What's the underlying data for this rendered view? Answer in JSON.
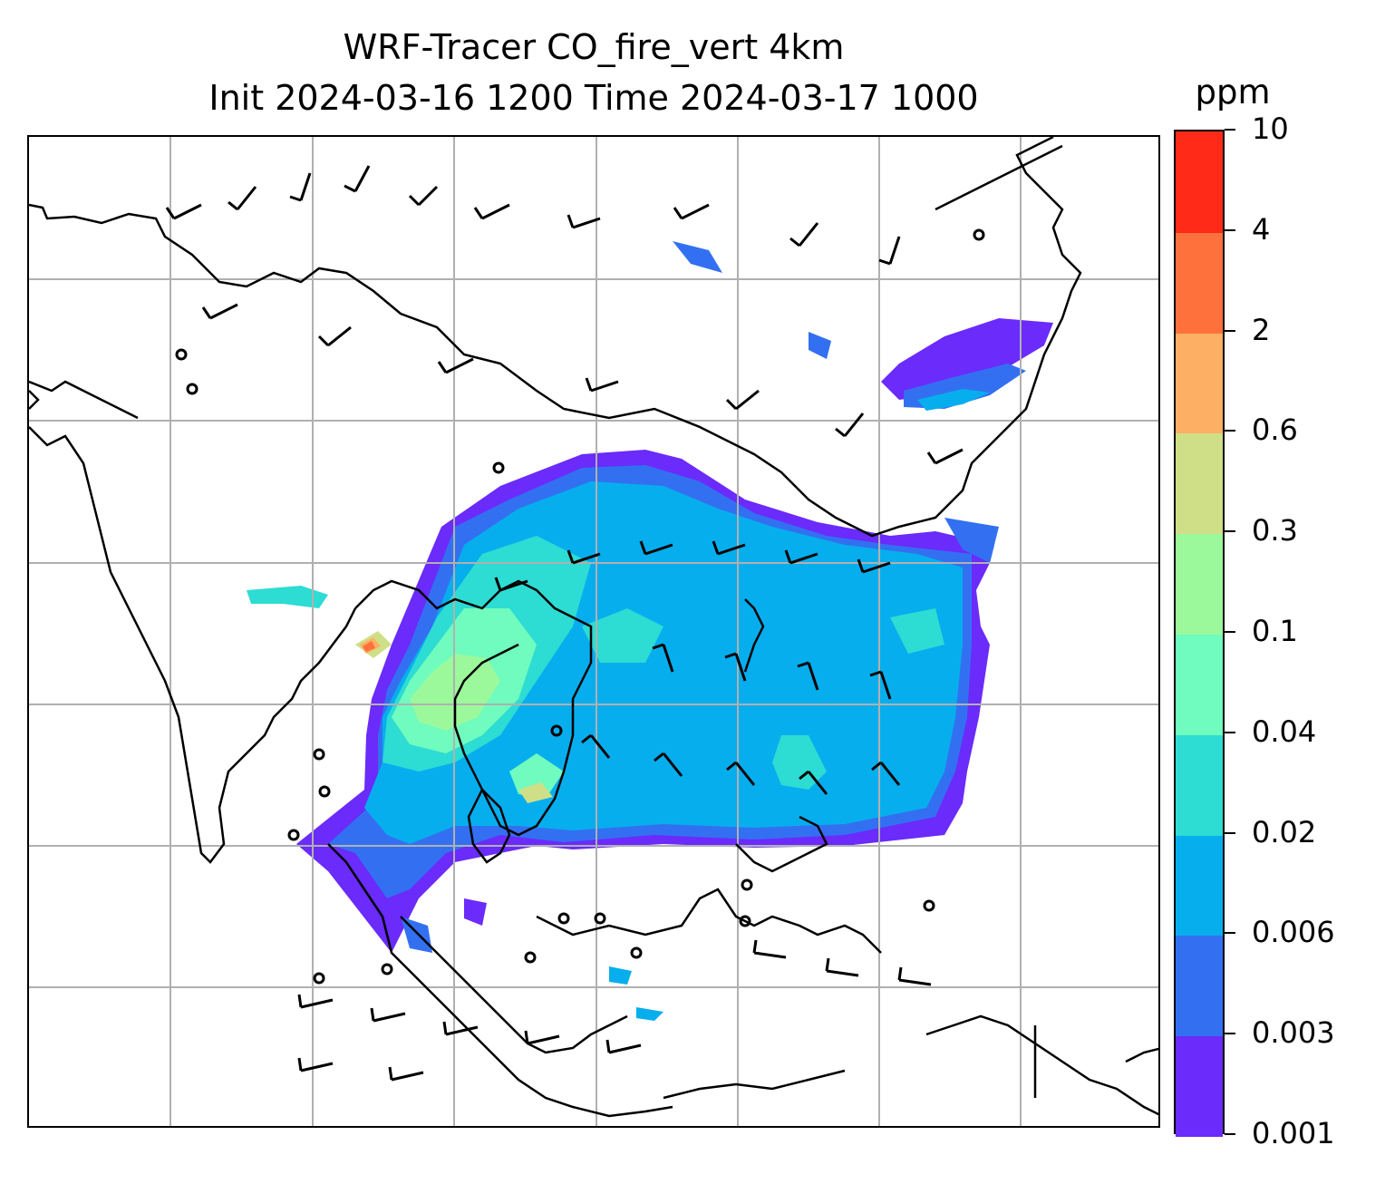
{
  "title": {
    "line1": "WRF-Tracer CO_fire_vert 4km",
    "line2": "Init 2024-03-16 1200 Time 2024-03-17 1000"
  },
  "map": {
    "field": "CO_fire_vert",
    "gridlines": true,
    "wind_barbs": true,
    "coastlines_and_borders": true
  },
  "colorbar": {
    "unit": "ppm",
    "ticks": [
      "0.001",
      "0.003",
      "0.006",
      "0.02",
      "0.04",
      "0.1",
      "0.3",
      "0.6",
      "2",
      "4",
      "10"
    ],
    "colors": [
      "#6a2bfb",
      "#3370f1",
      "#07aeed",
      "#2ddcd3",
      "#6ffcbe",
      "#9cf99b",
      "#cfdf87",
      "#fdb064",
      "#fe703c",
      "#ff2a17"
    ]
  }
}
